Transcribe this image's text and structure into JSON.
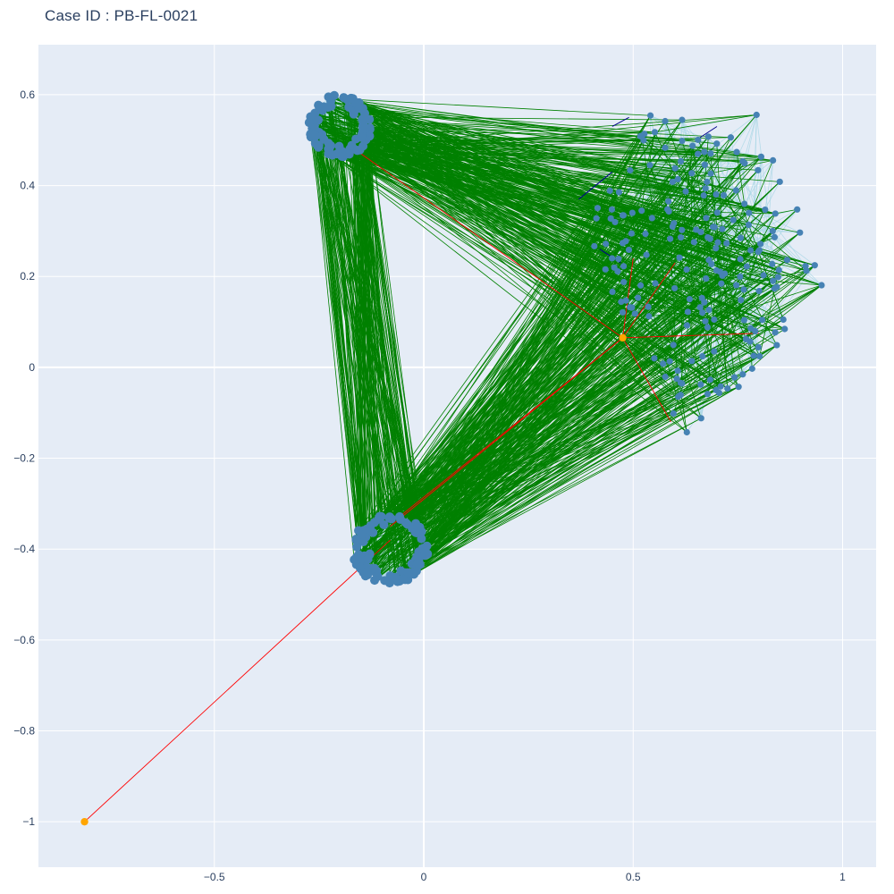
{
  "chart_data": {
    "type": "scatter",
    "title": "Case ID : PB-FL-0021",
    "xlabel": "",
    "ylabel": "",
    "xlim": [
      -0.92,
      1.08
    ],
    "ylim": [
      -1.1,
      0.71
    ],
    "grid": true,
    "legend": "none",
    "x_ticks": [
      -0.5,
      0,
      0.5,
      1
    ],
    "x_tick_labels": [
      "−0.5",
      "0",
      "0.5",
      "1"
    ],
    "y_ticks": [
      -1,
      -0.8,
      -0.6,
      -0.4,
      -0.2,
      0,
      0.2,
      0.4,
      0.6
    ],
    "y_tick_labels": [
      "−1",
      "−0.8",
      "−0.6",
      "−0.4",
      "−0.2",
      "0",
      "0.2",
      "0.4",
      "0.6"
    ],
    "colors": {
      "plot_bg": "#E5ECF6",
      "grid": "#FFFFFF",
      "node": "#4682B4",
      "highlight_node": "#FFA500",
      "inter_edge": "#008000",
      "intra_edge": "#ADD8E6",
      "flagged_edge": "#FF0000",
      "blue_edge": "#00008B"
    },
    "clusters": [
      {
        "name": "upper-left cluster",
        "center": [
          -0.2,
          0.53
        ],
        "radius_x": 0.075,
        "radius_y": 0.07,
        "count": 90
      },
      {
        "name": "lower cluster",
        "center": [
          -0.08,
          -0.4
        ],
        "radius_x": 0.09,
        "radius_y": 0.08,
        "count": 95
      },
      {
        "name": "right cluster",
        "center": [
          0.7,
          0.2
        ],
        "extent_x": [
          0.37,
          0.97
        ],
        "extent_y": [
          -0.2,
          0.56
        ],
        "count": 200
      }
    ],
    "highlight_nodes": [
      {
        "x": 0.475,
        "y": 0.065
      },
      {
        "x": -0.81,
        "y": -1.0
      }
    ],
    "flagged_edges": [
      [
        [
          -0.81,
          -1.0
        ],
        [
          -0.08,
          -0.38
        ]
      ],
      [
        [
          0.475,
          0.065
        ],
        [
          -0.08,
          -0.35
        ]
      ],
      [
        [
          0.475,
          0.065
        ],
        [
          -0.06,
          -0.33
        ]
      ],
      [
        [
          0.475,
          0.065
        ],
        [
          -0.15,
          0.47
        ]
      ],
      [
        [
          0.475,
          0.065
        ],
        [
          0.8,
          0.075
        ]
      ],
      [
        [
          0.475,
          0.065
        ],
        [
          0.59,
          -0.12
        ]
      ],
      [
        [
          0.475,
          0.065
        ],
        [
          0.5,
          0.24
        ]
      ],
      [
        [
          0.475,
          0.065
        ],
        [
          0.6,
          0.23
        ]
      ]
    ],
    "blue_edges": [
      [
        [
          0.45,
          0.53
        ],
        [
          0.49,
          0.55
        ]
      ],
      [
        [
          0.37,
          0.37
        ],
        [
          0.45,
          0.43
        ]
      ],
      [
        [
          0.65,
          0.5
        ],
        [
          0.7,
          0.53
        ]
      ],
      [
        [
          0.42,
          0.26
        ],
        [
          0.47,
          0.23
        ]
      ]
    ]
  }
}
